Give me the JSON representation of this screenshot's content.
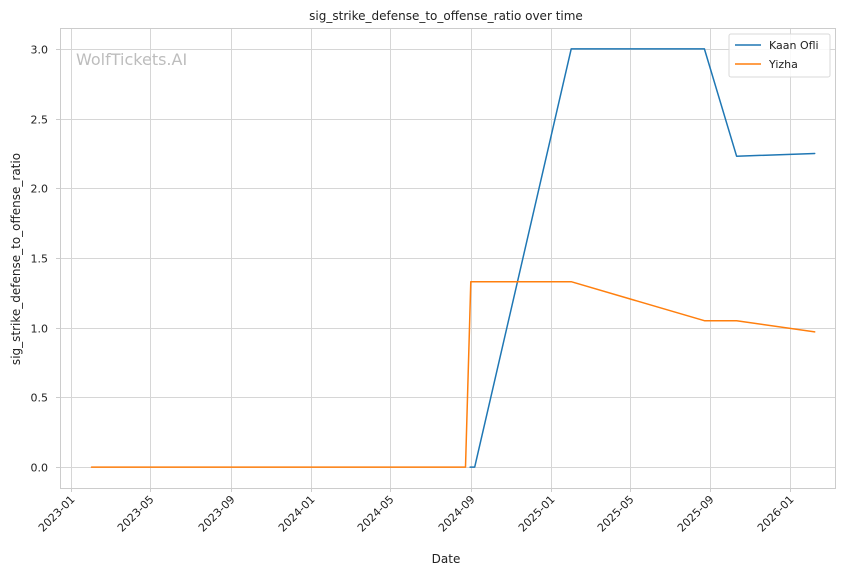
{
  "chart_data": {
    "type": "line",
    "title": "sig_strike_defense_to_offense_ratio over time",
    "xlabel": "Date",
    "ylabel": "sig_strike_defense_to_offense_ratio",
    "watermark": "WolfTickets.AI",
    "x_scale": "time",
    "xlim": [
      "2022-12-15",
      "2026-03-10"
    ],
    "ylim": [
      -0.15,
      3.15
    ],
    "x_ticks": [
      {
        "date": "2023-01-01",
        "label": "2023-01"
      },
      {
        "date": "2023-05-01",
        "label": "2023-05"
      },
      {
        "date": "2023-09-01",
        "label": "2023-09"
      },
      {
        "date": "2024-01-01",
        "label": "2024-01"
      },
      {
        "date": "2024-05-01",
        "label": "2024-05"
      },
      {
        "date": "2024-09-01",
        "label": "2024-09"
      },
      {
        "date": "2025-01-01",
        "label": "2025-01"
      },
      {
        "date": "2025-05-01",
        "label": "2025-05"
      },
      {
        "date": "2025-09-01",
        "label": "2025-09"
      },
      {
        "date": "2026-01-01",
        "label": "2026-01"
      }
    ],
    "y_ticks": [
      {
        "value": 0.0,
        "label": "0.0"
      },
      {
        "value": 0.5,
        "label": "0.5"
      },
      {
        "value": 1.0,
        "label": "1.0"
      },
      {
        "value": 1.5,
        "label": "1.5"
      },
      {
        "value": 2.0,
        "label": "2.0"
      },
      {
        "value": 2.5,
        "label": "2.5"
      },
      {
        "value": 3.0,
        "label": "3.0"
      }
    ],
    "grid": true,
    "legend_position": "top-right",
    "series": [
      {
        "name": "Kaan Ofli",
        "color": "#1f77b4",
        "points": [
          {
            "x": "2024-08-31",
            "y": 0.0
          },
          {
            "x": "2024-09-07",
            "y": 0.0
          },
          {
            "x": "2025-02-01",
            "y": 3.0
          },
          {
            "x": "2025-08-23",
            "y": 3.0
          },
          {
            "x": "2025-10-11",
            "y": 2.23
          },
          {
            "x": "2026-02-07",
            "y": 2.25
          }
        ]
      },
      {
        "name": "Yizha",
        "color": "#ff7f0e",
        "points": [
          {
            "x": "2023-02-01",
            "y": 0.0
          },
          {
            "x": "2024-08-24",
            "y": 0.0
          },
          {
            "x": "2024-09-01",
            "y": 1.33
          },
          {
            "x": "2025-02-01",
            "y": 1.33
          },
          {
            "x": "2025-08-23",
            "y": 1.05
          },
          {
            "x": "2025-10-11",
            "y": 1.05
          },
          {
            "x": "2026-02-07",
            "y": 0.97
          }
        ]
      }
    ]
  }
}
